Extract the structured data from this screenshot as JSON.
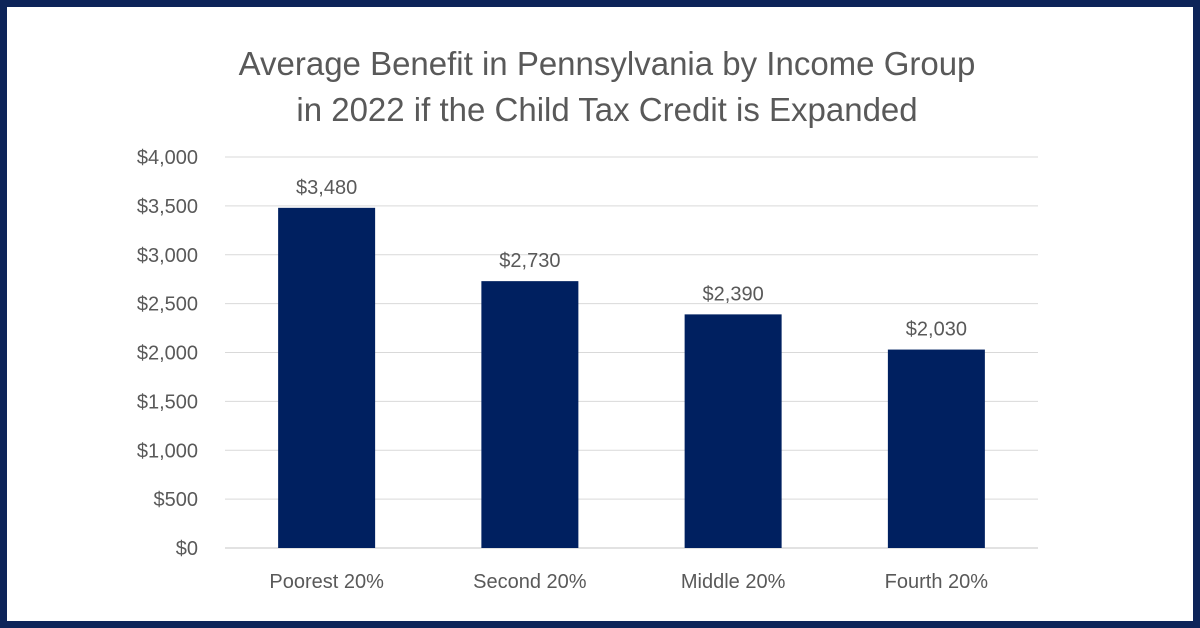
{
  "chart_data": {
    "type": "bar",
    "title_lines": [
      "Average Benefit in Pennsylvania by Income Group",
      "in 2022 if the Child Tax Credit is Expanded"
    ],
    "categories": [
      "Poorest 20%",
      "Second 20%",
      "Middle 20%",
      "Fourth 20%"
    ],
    "values": [
      3480,
      2730,
      2390,
      2030
    ],
    "data_labels": [
      "$3,480",
      "$2,730",
      "$2,390",
      "$2,030"
    ],
    "xlabel": "",
    "ylabel": "",
    "ylim": [
      0,
      4000
    ],
    "yticks": [
      0,
      500,
      1000,
      1500,
      2000,
      2500,
      3000,
      3500,
      4000
    ],
    "ytick_labels": [
      "$0",
      "$500",
      "$1,000",
      "$1,500",
      "$2,000",
      "$2,500",
      "$3,000",
      "$3,500",
      "$4,000"
    ],
    "grid": true,
    "bar_color": "#002060",
    "grid_color": "#d9d9d9",
    "frame_color": "#0d2459"
  }
}
